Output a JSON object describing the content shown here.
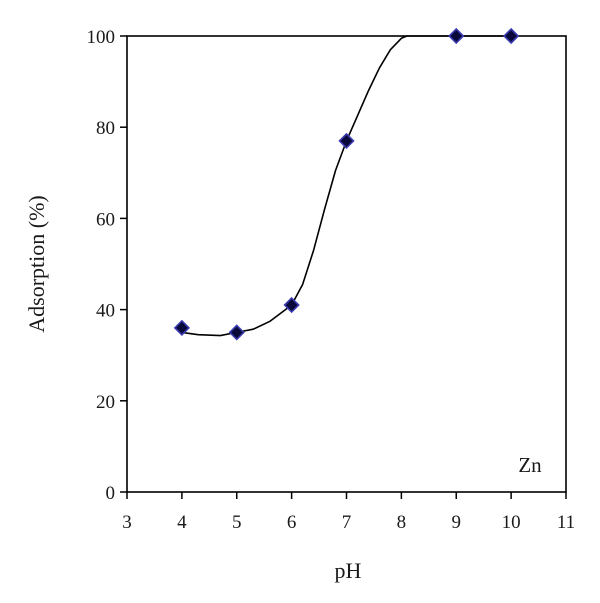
{
  "chart_data": {
    "type": "scatter",
    "title": "",
    "xlabel": "pH",
    "ylabel": "Adsorption (%)",
    "xlim": [
      3,
      11
    ],
    "ylim": [
      0,
      100
    ],
    "xticks": [
      3,
      4,
      5,
      6,
      7,
      8,
      9,
      10,
      11
    ],
    "yticks": [
      0,
      20,
      40,
      60,
      80,
      100
    ],
    "xtick_labels": [
      "3",
      "4",
      "5",
      "6",
      "7",
      "8",
      "9",
      "10",
      "11"
    ],
    "ytick_labels": [
      "0",
      "20",
      "40",
      "60",
      "80",
      "100"
    ],
    "grid": false,
    "legend": "none",
    "annotation": "Zn",
    "series": [
      {
        "marker": "diamond",
        "marker_color": "#0a0a3a",
        "marker_edge_color": "#3a3ab0",
        "x": [
          4,
          5,
          6,
          7,
          9,
          10
        ],
        "y": [
          36,
          35,
          41,
          77,
          100,
          100
        ]
      }
    ],
    "fit_curve": {
      "color": "#000000",
      "x": [
        4,
        4.3,
        4.7,
        5,
        5.3,
        5.6,
        6,
        6.2,
        6.4,
        6.6,
        6.8,
        7,
        7.2,
        7.4,
        7.6,
        7.8,
        8,
        8.1,
        9,
        10
      ],
      "y": [
        35,
        34.5,
        34.3,
        35,
        35.7,
        37.4,
        41,
        45.5,
        53,
        62,
        70.5,
        77,
        82.5,
        88,
        93,
        97,
        99.5,
        100,
        100,
        100
      ]
    }
  }
}
